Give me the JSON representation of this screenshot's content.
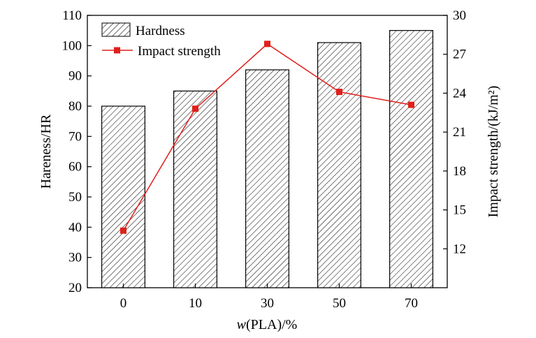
{
  "chart_data": {
    "type": "bar+line",
    "categories": [
      "0",
      "10",
      "30",
      "50",
      "70"
    ],
    "xlabel": "w(PLA)/%",
    "xlabel_italic": "w",
    "xlabel_rest": "(PLA)/%",
    "ylabel_left": "Hareness/HR",
    "ylabel_right": "Impact strength/(kJ/m²)",
    "ylim_left": [
      20,
      110
    ],
    "yticks_left": [
      20,
      30,
      40,
      50,
      60,
      70,
      80,
      90,
      100,
      110
    ],
    "ylim_right": [
      9,
      30
    ],
    "yticks_right": [
      12,
      15,
      18,
      21,
      24,
      27,
      30
    ],
    "series": [
      {
        "name": "Hardness",
        "type": "bar",
        "axis": "left",
        "values": [
          80,
          85,
          92,
          101,
          105
        ]
      },
      {
        "name": "Impact strength",
        "type": "line",
        "axis": "right",
        "values": [
          13.4,
          22.8,
          27.8,
          24.1,
          23.1
        ],
        "color": "#e0201b"
      }
    ],
    "legend_position": "top-left",
    "grid": false
  }
}
